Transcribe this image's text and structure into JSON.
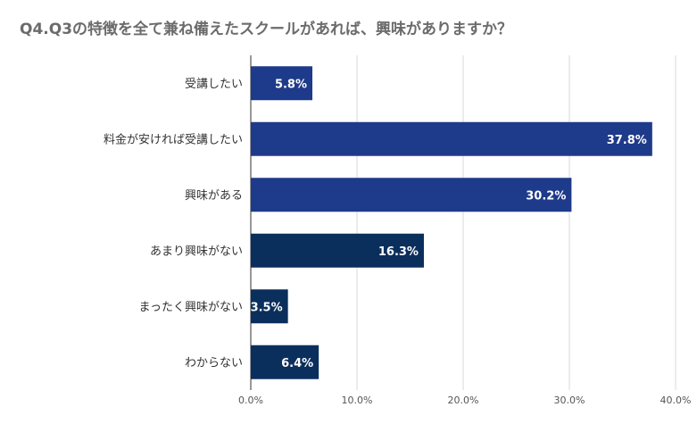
{
  "title": "Q4.Q3の特徴を全て兼ね備えたスクールがあれば、興味がありますか？",
  "chart_data": {
    "type": "bar",
    "orientation": "horizontal",
    "title": "Q4.Q3の特徴を全て兼ね備えたスクールがあれば、興味がありますか？",
    "categories": [
      "受講したい",
      "料金が安ければ受講したい",
      "興味がある",
      "あまり興味がない",
      "まったく興味がない",
      "わからない"
    ],
    "values": [
      5.8,
      37.8,
      30.2,
      16.3,
      3.5,
      6.4
    ],
    "value_labels": [
      "5.8%",
      "37.8%",
      "30.2%",
      "16.3%",
      "3.5%",
      "6.4%"
    ],
    "xlim": [
      0,
      40
    ],
    "ticks": [
      "0.0%",
      "10.0%",
      "20.0%",
      "30.0%",
      "40.0%"
    ],
    "grid": true,
    "colors": [
      "#1e3a8a",
      "#1e3a8a",
      "#1e3a8a",
      "#0b2f5c",
      "#0b2f5c",
      "#0b2f5c"
    ]
  }
}
